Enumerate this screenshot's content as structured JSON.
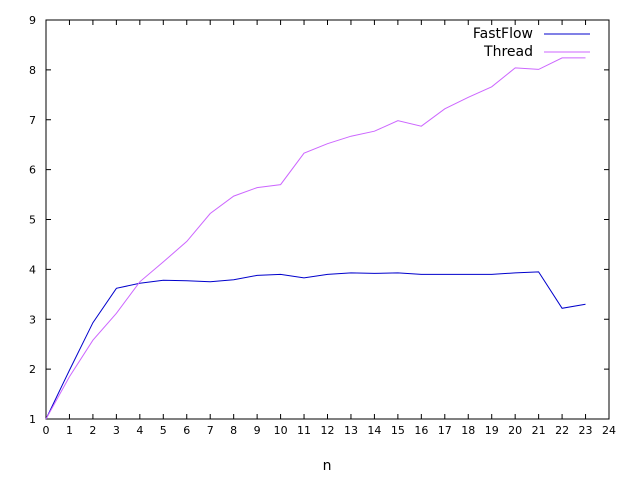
{
  "chart_data": {
    "type": "line",
    "title": "",
    "xlabel": "n",
    "ylabel": "",
    "xlim": [
      0,
      24
    ],
    "ylim": [
      1,
      9
    ],
    "xticks": [
      0,
      1,
      2,
      3,
      4,
      5,
      6,
      7,
      8,
      9,
      10,
      11,
      12,
      13,
      14,
      15,
      16,
      17,
      18,
      19,
      20,
      21,
      22,
      23,
      24
    ],
    "yticks": [
      1,
      2,
      3,
      4,
      5,
      6,
      7,
      8,
      9
    ],
    "grid": false,
    "legend_position": "top-right",
    "series": [
      {
        "name": "FastFlow",
        "color": "#0000cc",
        "x": [
          0,
          1,
          2,
          3,
          4,
          5,
          6,
          7,
          8,
          9,
          10,
          11,
          12,
          13,
          14,
          15,
          16,
          17,
          18,
          19,
          20,
          21,
          22,
          23
        ],
        "y": [
          1.0,
          1.98,
          2.93,
          3.62,
          3.72,
          3.78,
          3.77,
          3.75,
          3.79,
          3.88,
          3.9,
          3.83,
          3.9,
          3.93,
          3.92,
          3.93,
          3.9,
          3.9,
          3.9,
          3.9,
          3.93,
          3.95,
          3.22,
          3.3
        ]
      },
      {
        "name": "Thread",
        "color": "#cc66ff",
        "x": [
          0,
          1,
          2,
          3,
          4,
          5,
          6,
          7,
          8,
          9,
          10,
          11,
          12,
          13,
          14,
          15,
          16,
          17,
          18,
          19,
          20,
          21,
          22,
          23
        ],
        "y": [
          1.0,
          1.85,
          2.58,
          3.12,
          3.75,
          4.15,
          4.56,
          5.12,
          5.47,
          5.64,
          5.7,
          6.33,
          6.52,
          6.67,
          6.77,
          6.98,
          6.87,
          7.22,
          7.45,
          7.66,
          8.04,
          8.01,
          8.24,
          8.24
        ]
      }
    ]
  }
}
